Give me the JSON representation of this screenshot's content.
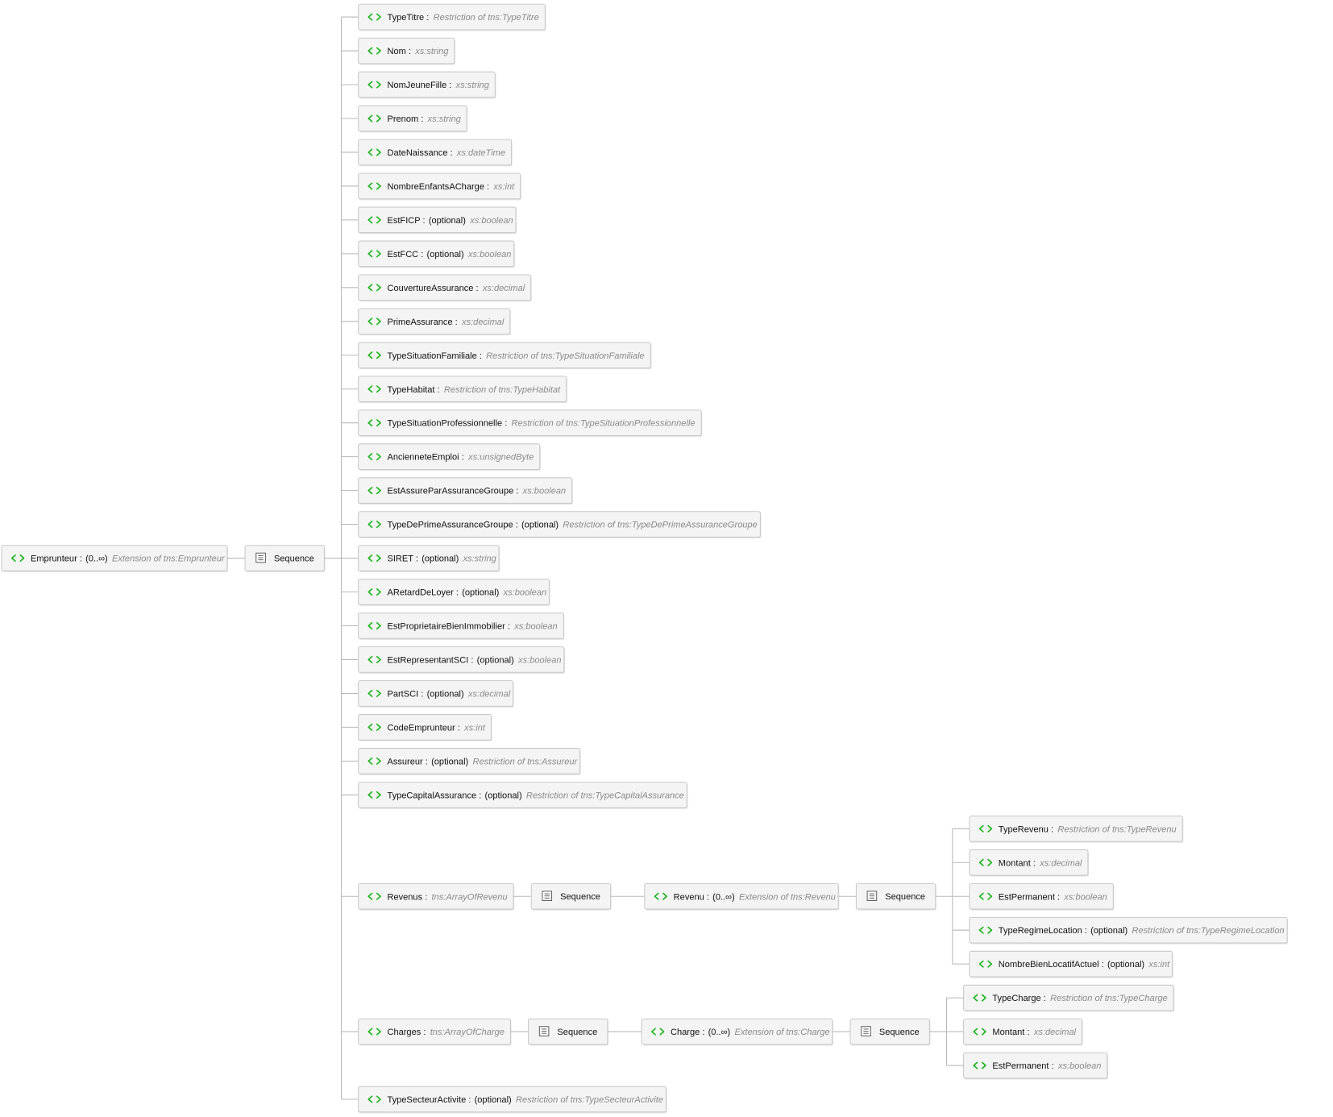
{
  "root": {
    "name": "Emprunteur :",
    "qualifier": "(0..∞)",
    "type": "Extension of tns:Emprunteur",
    "sequence": {
      "label": "Sequence",
      "children": [
        {
          "name": "TypeTitre :",
          "type": "Restriction of tns:TypeTitre"
        },
        {
          "name": "Nom :",
          "type": "xs:string"
        },
        {
          "name": "NomJeuneFille :",
          "type": "xs:string"
        },
        {
          "name": "Prenom :",
          "type": "xs:string"
        },
        {
          "name": "DateNaissance :",
          "type": "xs:dateTime"
        },
        {
          "name": "NombreEnfantsACharge :",
          "type": "xs:int"
        },
        {
          "name": "EstFICP :",
          "qualifier": "(optional)",
          "type": "xs:boolean"
        },
        {
          "name": "EstFCC :",
          "qualifier": "(optional)",
          "type": "xs:boolean"
        },
        {
          "name": "CouvertureAssurance :",
          "type": "xs:decimal"
        },
        {
          "name": "PrimeAssurance :",
          "type": "xs:decimal"
        },
        {
          "name": "TypeSituationFamiliale :",
          "type": "Restriction of tns:TypeSituationFamiliale"
        },
        {
          "name": "TypeHabitat :",
          "type": "Restriction of tns:TypeHabitat"
        },
        {
          "name": "TypeSituationProfessionnelle :",
          "type": "Restriction of tns:TypeSituationProfessionnelle"
        },
        {
          "name": "AncienneteEmploi :",
          "type": "xs:unsignedByte"
        },
        {
          "name": "EstAssureParAssuranceGroupe :",
          "type": "xs:boolean"
        },
        {
          "name": "TypeDePrimeAssuranceGroupe :",
          "qualifier": "(optional)",
          "type": "Restriction of tns:TypeDePrimeAssuranceGroupe"
        },
        {
          "name": "SIRET :",
          "qualifier": "(optional)",
          "type": "xs:string"
        },
        {
          "name": "ARetardDeLoyer :",
          "qualifier": "(optional)",
          "type": "xs:boolean"
        },
        {
          "name": "EstProprietaireBienImmobilier :",
          "type": "xs:boolean"
        },
        {
          "name": "EstRepresentantSCI :",
          "qualifier": "(optional)",
          "type": "xs:boolean"
        },
        {
          "name": "PartSCI :",
          "qualifier": "(optional)",
          "type": "xs:decimal"
        },
        {
          "name": "CodeEmprunteur :",
          "type": "xs:int"
        },
        {
          "name": "Assureur :",
          "qualifier": "(optional)",
          "type": "Restriction of tns:Assureur"
        },
        {
          "name": "TypeCapitalAssurance :",
          "qualifier": "(optional)",
          "type": "Restriction of tns:TypeCapitalAssurance"
        },
        {
          "name": "Revenus :",
          "type": "tns:ArrayOfRevenu",
          "sequence": {
            "label": "Sequence",
            "children": [
              {
                "name": "Revenu :",
                "qualifier": "(0..∞)",
                "type": "Extension of tns:Revenu",
                "sequence": {
                  "label": "Sequence",
                  "children": [
                    {
                      "name": "TypeRevenu :",
                      "type": "Restriction of tns:TypeRevenu"
                    },
                    {
                      "name": "Montant :",
                      "type": "xs:decimal"
                    },
                    {
                      "name": "EstPermanent :",
                      "type": "xs:boolean"
                    },
                    {
                      "name": "TypeRegimeLocation :",
                      "qualifier": "(optional)",
                      "type": "Restriction of tns:TypeRegimeLocation"
                    },
                    {
                      "name": "NombreBienLocatifActuel :",
                      "qualifier": "(optional)",
                      "type": "xs:int"
                    }
                  ]
                }
              }
            ]
          }
        },
        {
          "name": "Charges :",
          "type": "tns:ArrayOfCharge",
          "sequence": {
            "label": "Sequence",
            "children": [
              {
                "name": "Charge :",
                "qualifier": "(0..∞)",
                "type": "Extension of tns:Charge",
                "sequence": {
                  "label": "Sequence",
                  "children": [
                    {
                      "name": "TypeCharge :",
                      "type": "Restriction of tns:TypeCharge"
                    },
                    {
                      "name": "Montant :",
                      "type": "xs:decimal"
                    },
                    {
                      "name": "EstPermanent :",
                      "type": "xs:boolean"
                    }
                  ]
                }
              }
            ]
          }
        },
        {
          "name": "TypeSecteurActivite :",
          "qualifier": "(optional)",
          "type": "Restriction of tns:TypeSecteurActivite"
        }
      ]
    }
  }
}
